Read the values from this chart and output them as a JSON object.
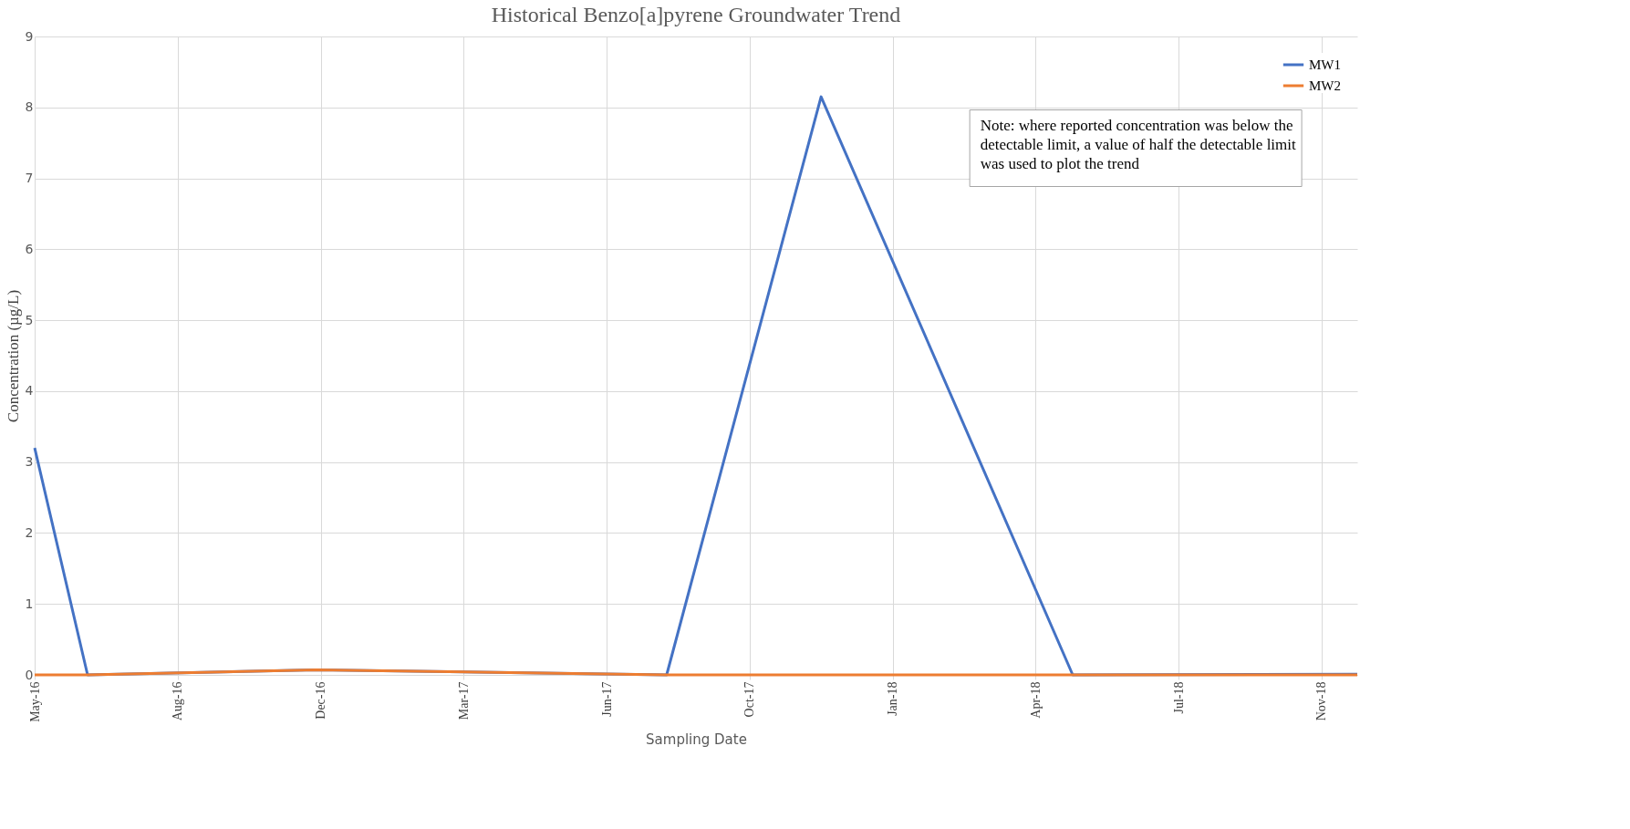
{
  "chart_data": {
    "type": "line",
    "title": "Historical Benzo[a]pyrene Groundwater Trend",
    "xlabel": "Sampling Date",
    "ylabel": "Concentration (µg/L)",
    "x": [
      "2016-05-21",
      "2016-06-27",
      "2016-12-04",
      "2017-08-06",
      "2017-11-22",
      "2018-05-17",
      "2018-12-02"
    ],
    "series": [
      {
        "name": "MW1",
        "color": "#4472c4",
        "values": [
          3.2,
          0,
          0.07,
          0,
          8.15,
          0,
          0.01
        ]
      },
      {
        "name": "MW2",
        "color": "#ed7d31",
        "values": [
          0,
          0,
          0.07,
          0,
          0,
          0,
          0
        ]
      }
    ],
    "xlim": [
      "2016-05-21",
      "2018-12-02"
    ],
    "xticks": [
      {
        "value": "2016-05-21",
        "label": "May-16"
      },
      {
        "value": "2016-08-29",
        "label": "Aug-16"
      },
      {
        "value": "2016-12-07",
        "label": "Dec-16"
      },
      {
        "value": "2017-03-17",
        "label": "Mar-17"
      },
      {
        "value": "2017-06-25",
        "label": "Jun-17"
      },
      {
        "value": "2017-10-03",
        "label": "Oct-17"
      },
      {
        "value": "2018-01-11",
        "label": "Jan-18"
      },
      {
        "value": "2018-04-21",
        "label": "Apr-18"
      },
      {
        "value": "2018-07-30",
        "label": "Jul-18"
      },
      {
        "value": "2018-11-07",
        "label": "Nov-18"
      }
    ],
    "ylim": [
      0,
      9
    ],
    "yticks": [
      0,
      1,
      2,
      3,
      4,
      5,
      6,
      7,
      8,
      9
    ],
    "grid": true,
    "legend": "top right",
    "marker": "none",
    "line_style": "solid",
    "annotations": [
      "Note: where reported concentration was below the detectable limit, a value of half the detectable limit was used to plot the trend"
    ]
  }
}
